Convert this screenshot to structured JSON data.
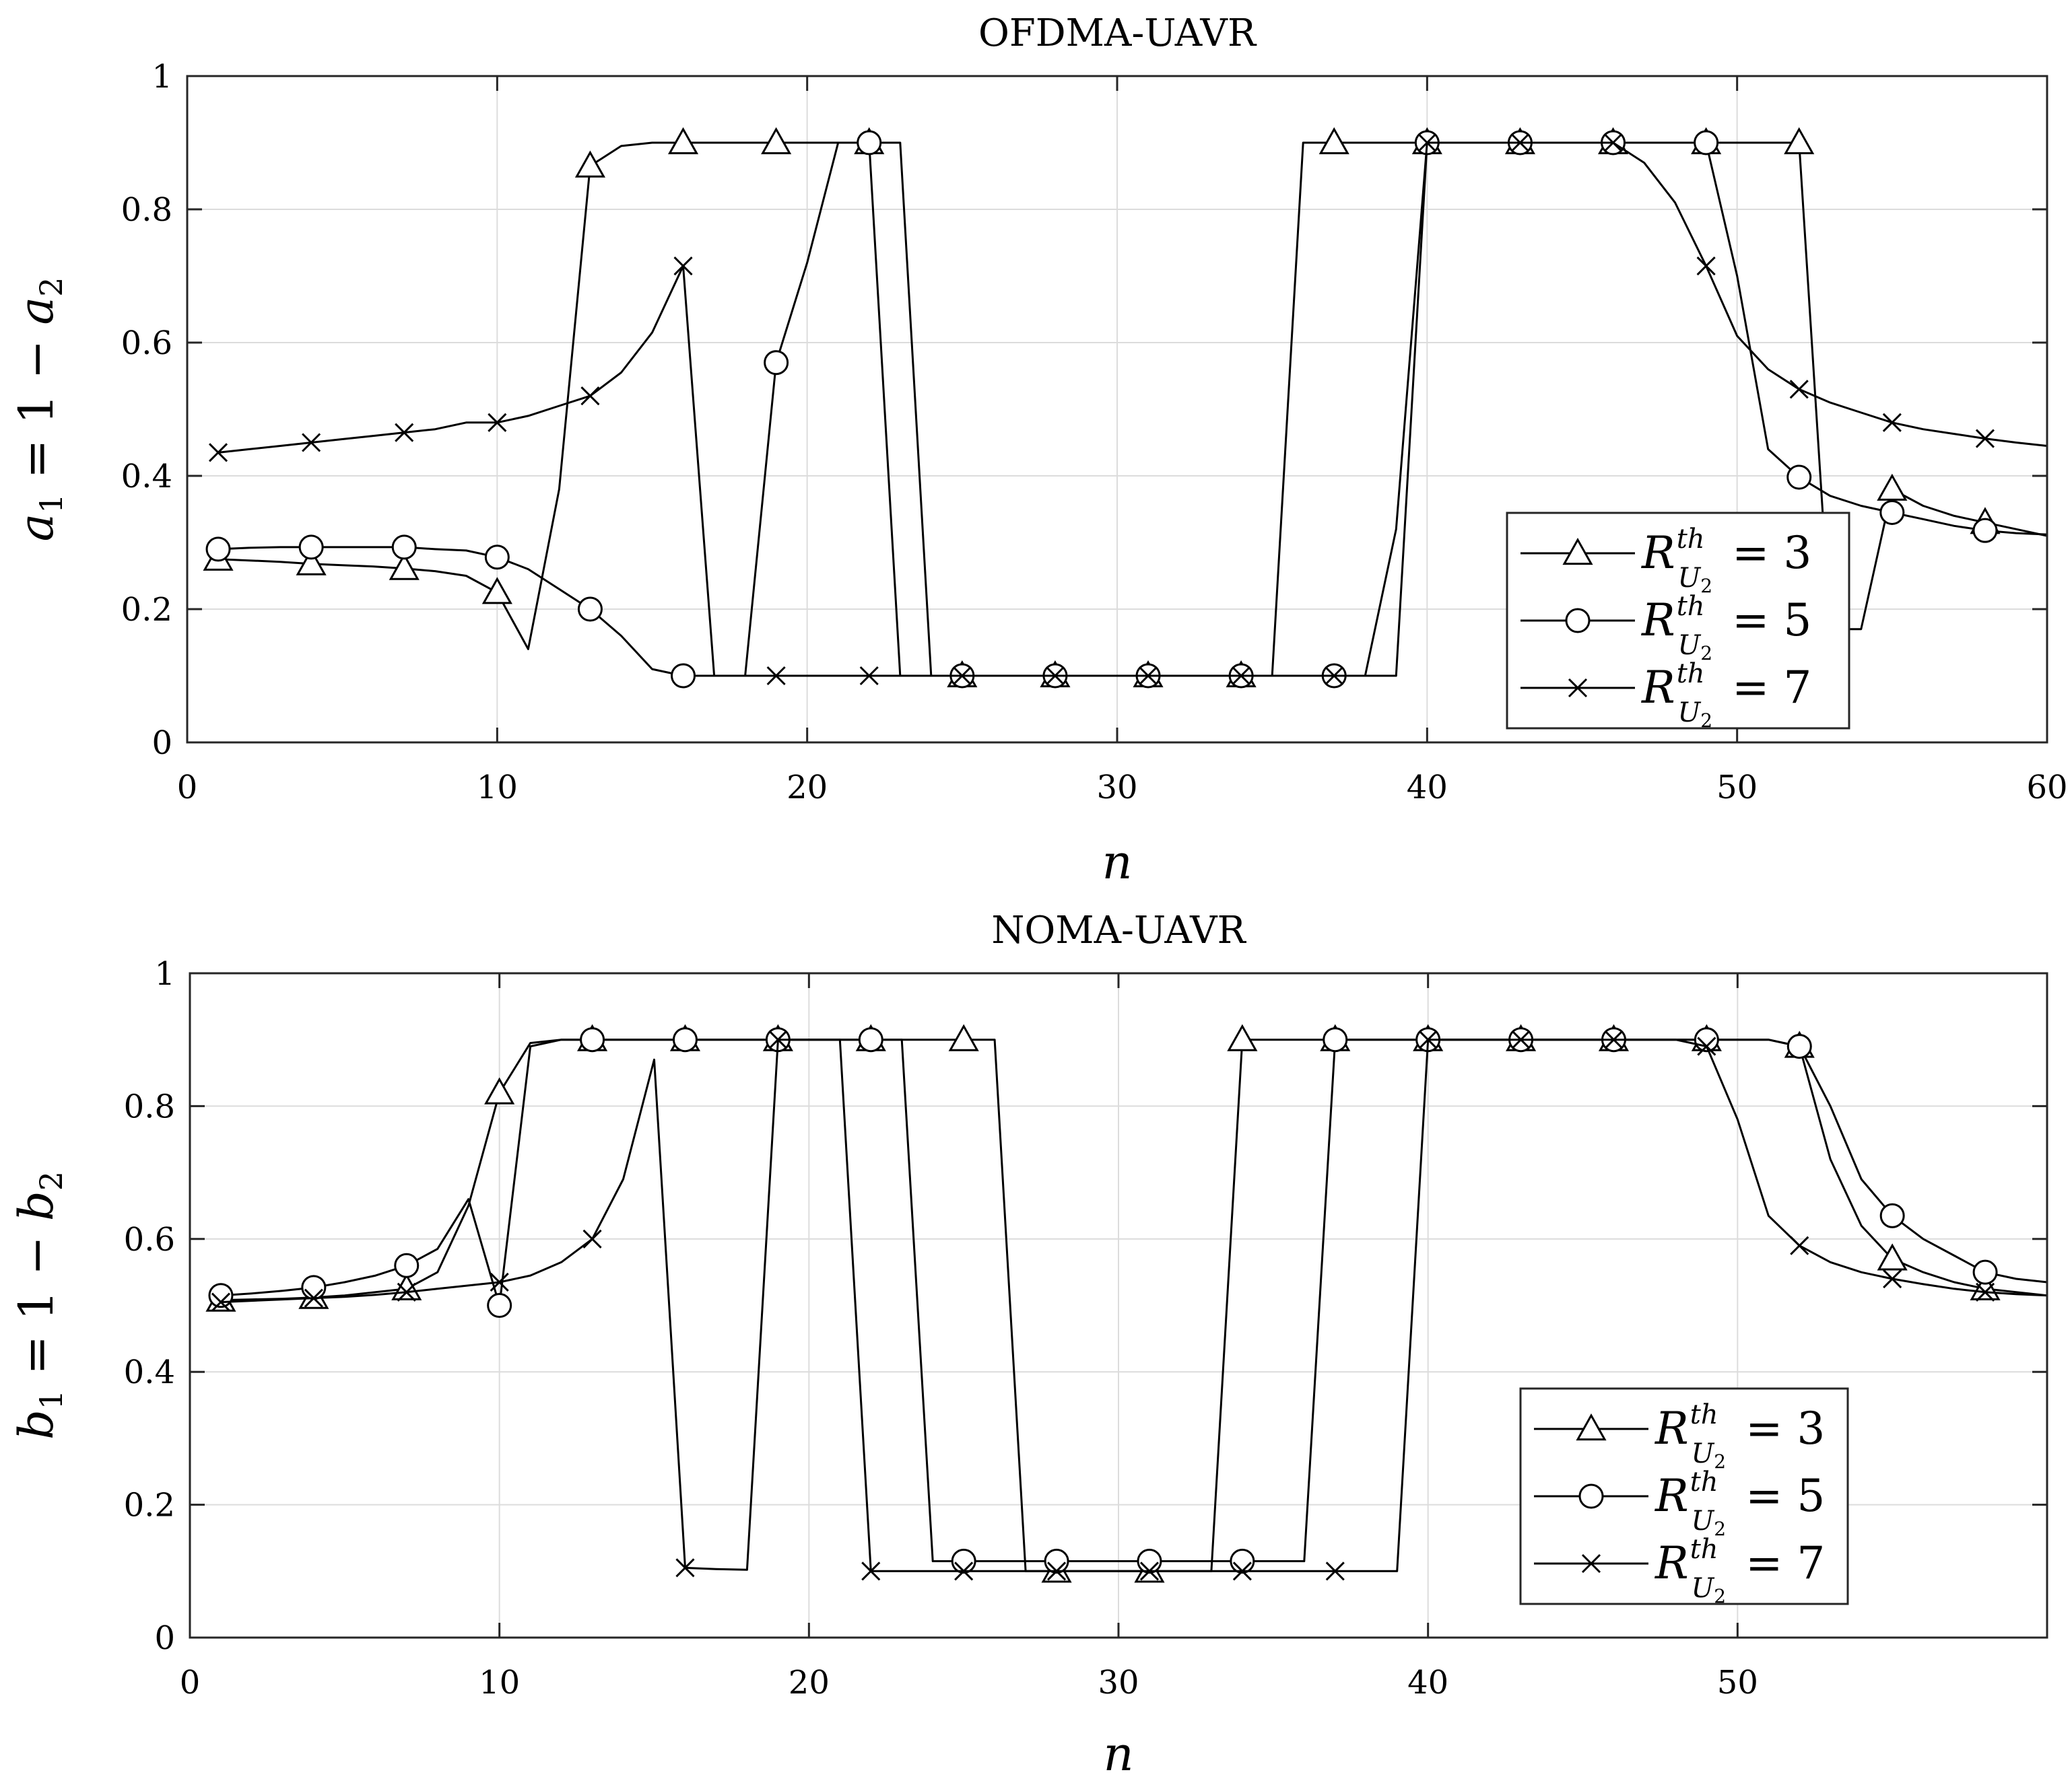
{
  "chart_data": [
    {
      "type": "line",
      "title": "OFDMA-UAVR",
      "xlabel": "n",
      "ylabel": "a1 = 1 − a2",
      "ylabel_parts": {
        "a": "a",
        "sub1": "1",
        "eq": " = 1 − ",
        "sub2": "2"
      },
      "xlim": [
        0,
        60
      ],
      "ylim": [
        0,
        1
      ],
      "xticks": [
        0,
        10,
        20,
        30,
        40,
        50,
        60
      ],
      "yticks": [
        0,
        0.2,
        0.4,
        0.6,
        0.8,
        1
      ],
      "xtick_labels": [
        "0",
        "10",
        "20",
        "30",
        "40",
        "50",
        "60"
      ],
      "ytick_labels": [
        "0",
        "0.2",
        "0.4",
        "0.6",
        "0.8",
        "1"
      ],
      "grid": true,
      "legend_position": "bottom-right",
      "series": [
        {
          "name": "R_U2^th = 3",
          "marker": "triangle",
          "x": [
            1,
            2,
            3,
            4,
            5,
            6,
            7,
            8,
            9,
            10,
            11,
            12,
            13,
            14,
            15,
            16,
            17,
            18,
            19,
            20,
            21,
            22,
            23,
            24,
            25,
            26,
            27,
            28,
            29,
            30,
            31,
            32,
            33,
            34,
            35,
            36,
            37,
            38,
            39,
            40,
            41,
            42,
            43,
            44,
            45,
            46,
            47,
            48,
            49,
            50,
            51,
            52,
            53,
            54,
            55,
            56,
            57,
            58,
            59,
            60
          ],
          "y": [
            0.275,
            0.273,
            0.271,
            0.268,
            0.266,
            0.264,
            0.261,
            0.257,
            0.25,
            0.225,
            0.14,
            0.38,
            0.865,
            0.895,
            0.9,
            0.9,
            0.9,
            0.9,
            0.9,
            0.9,
            0.9,
            0.9,
            0.9,
            0.1,
            0.1,
            0.1,
            0.1,
            0.1,
            0.1,
            0.1,
            0.1,
            0.1,
            0.1,
            0.1,
            0.1,
            0.9,
            0.9,
            0.9,
            0.9,
            0.9,
            0.9,
            0.9,
            0.9,
            0.9,
            0.9,
            0.9,
            0.9,
            0.9,
            0.9,
            0.9,
            0.9,
            0.9,
            0.17,
            0.17,
            0.38,
            0.355,
            0.34,
            0.33,
            0.32,
            0.31
          ]
        },
        {
          "name": "R_U2^th = 5",
          "marker": "circle",
          "x": [
            1,
            2,
            3,
            4,
            5,
            6,
            7,
            8,
            9,
            10,
            11,
            12,
            13,
            14,
            15,
            16,
            17,
            18,
            19,
            20,
            21,
            22,
            23,
            24,
            25,
            26,
            27,
            28,
            29,
            30,
            31,
            32,
            33,
            34,
            35,
            36,
            37,
            38,
            39,
            40,
            41,
            42,
            43,
            44,
            45,
            46,
            47,
            48,
            49,
            50,
            51,
            52,
            53,
            54,
            55,
            56,
            57,
            58,
            59,
            60
          ],
          "y": [
            0.29,
            0.292,
            0.293,
            0.293,
            0.293,
            0.293,
            0.293,
            0.29,
            0.288,
            0.278,
            0.26,
            0.23,
            0.2,
            0.16,
            0.11,
            0.1,
            0.1,
            0.1,
            0.57,
            0.72,
            0.9,
            0.9,
            0.1,
            0.1,
            0.1,
            0.1,
            0.1,
            0.1,
            0.1,
            0.1,
            0.1,
            0.1,
            0.1,
            0.1,
            0.1,
            0.1,
            0.1,
            0.1,
            0.1,
            0.9,
            0.9,
            0.9,
            0.9,
            0.9,
            0.9,
            0.9,
            0.9,
            0.9,
            0.9,
            0.7,
            0.44,
            0.398,
            0.37,
            0.355,
            0.345,
            0.335,
            0.325,
            0.318,
            0.314,
            0.312
          ]
        },
        {
          "name": "R_U2^th = 7",
          "marker": "x",
          "x": [
            1,
            2,
            3,
            4,
            5,
            6,
            7,
            8,
            9,
            10,
            11,
            12,
            13,
            14,
            15,
            16,
            17,
            18,
            19,
            20,
            21,
            22,
            23,
            24,
            25,
            26,
            27,
            28,
            29,
            30,
            31,
            32,
            33,
            34,
            35,
            36,
            37,
            38,
            39,
            40,
            41,
            42,
            43,
            44,
            45,
            46,
            47,
            48,
            49,
            50,
            51,
            52,
            53,
            54,
            55,
            56,
            57,
            58,
            59,
            60
          ],
          "y": [
            0.435,
            0.44,
            0.445,
            0.45,
            0.455,
            0.46,
            0.465,
            0.47,
            0.48,
            0.48,
            0.49,
            0.505,
            0.52,
            0.555,
            0.615,
            0.715,
            0.1,
            0.1,
            0.1,
            0.1,
            0.1,
            0.1,
            0.1,
            0.1,
            0.1,
            0.1,
            0.1,
            0.1,
            0.1,
            0.1,
            0.1,
            0.1,
            0.1,
            0.1,
            0.1,
            0.1,
            0.1,
            0.1,
            0.32,
            0.9,
            0.9,
            0.9,
            0.9,
            0.9,
            0.9,
            0.9,
            0.87,
            0.81,
            0.715,
            0.61,
            0.56,
            0.53,
            0.51,
            0.495,
            0.48,
            0.47,
            0.463,
            0.456,
            0.45,
            0.445
          ]
        }
      ]
    },
    {
      "type": "line",
      "title": "NOMA-UAVR",
      "xlabel": "n",
      "ylabel": "b1 = 1 − b2",
      "ylabel_parts": {
        "a": "b",
        "sub1": "1",
        "eq": " = 1 − ",
        "sub2": "2"
      },
      "xlim": [
        0,
        60
      ],
      "ylim": [
        0,
        1
      ],
      "xticks": [
        0,
        10,
        20,
        30,
        40,
        50
      ],
      "yticks": [
        0,
        0.2,
        0.4,
        0.6,
        0.8,
        1
      ],
      "xtick_labels": [
        "0",
        "10",
        "20",
        "30",
        "40",
        "50"
      ],
      "ytick_labels": [
        "0",
        "0.2",
        "0.4",
        "0.6",
        "0.8",
        "1"
      ],
      "grid": true,
      "legend_position": "bottom-right",
      "series": [
        {
          "name": "R_U2^th = 3",
          "marker": "triangle",
          "x": [
            1,
            2,
            3,
            4,
            5,
            6,
            7,
            8,
            9,
            10,
            11,
            12,
            13,
            14,
            15,
            16,
            17,
            18,
            19,
            20,
            21,
            22,
            23,
            24,
            25,
            26,
            27,
            28,
            29,
            30,
            31,
            32,
            33,
            34,
            35,
            36,
            37,
            38,
            39,
            40,
            41,
            42,
            43,
            44,
            45,
            46,
            47,
            48,
            49,
            50,
            51,
            52,
            53,
            54,
            55,
            56,
            57,
            58,
            59,
            60
          ],
          "y": [
            0.508,
            0.509,
            0.51,
            0.512,
            0.515,
            0.52,
            0.525,
            0.55,
            0.65,
            0.82,
            0.895,
            0.9,
            0.9,
            0.9,
            0.9,
            0.9,
            0.9,
            0.9,
            0.9,
            0.9,
            0.9,
            0.9,
            0.9,
            0.9,
            0.9,
            0.9,
            0.1,
            0.1,
            0.1,
            0.1,
            0.1,
            0.1,
            0.1,
            0.9,
            0.9,
            0.9,
            0.9,
            0.9,
            0.9,
            0.9,
            0.9,
            0.9,
            0.9,
            0.9,
            0.9,
            0.9,
            0.9,
            0.9,
            0.9,
            0.9,
            0.9,
            0.89,
            0.72,
            0.62,
            0.57,
            0.55,
            0.535,
            0.525,
            0.52,
            0.515
          ]
        },
        {
          "name": "R_U2^th = 5",
          "marker": "circle",
          "x": [
            1,
            2,
            3,
            4,
            5,
            6,
            7,
            8,
            9,
            10,
            11,
            12,
            13,
            14,
            15,
            16,
            17,
            18,
            19,
            20,
            21,
            22,
            23,
            24,
            25,
            26,
            27,
            28,
            29,
            30,
            31,
            32,
            33,
            34,
            35,
            36,
            37,
            38,
            39,
            40,
            41,
            42,
            43,
            44,
            45,
            46,
            47,
            48,
            49,
            50,
            51,
            52,
            53,
            54,
            55,
            56,
            57,
            58,
            59,
            60
          ],
          "y": [
            0.515,
            0.518,
            0.522,
            0.527,
            0.535,
            0.545,
            0.56,
            0.585,
            0.66,
            0.5,
            0.89,
            0.9,
            0.9,
            0.9,
            0.9,
            0.9,
            0.9,
            0.9,
            0.9,
            0.9,
            0.9,
            0.9,
            0.9,
            0.115,
            0.115,
            0.115,
            0.115,
            0.115,
            0.115,
            0.115,
            0.115,
            0.115,
            0.115,
            0.115,
            0.115,
            0.115,
            0.9,
            0.9,
            0.9,
            0.9,
            0.9,
            0.9,
            0.9,
            0.9,
            0.9,
            0.9,
            0.9,
            0.9,
            0.9,
            0.9,
            0.9,
            0.89,
            0.8,
            0.69,
            0.635,
            0.6,
            0.575,
            0.55,
            0.54,
            0.535
          ]
        },
        {
          "name": "R_U2^th = 7",
          "marker": "x",
          "x": [
            1,
            2,
            3,
            4,
            5,
            6,
            7,
            8,
            9,
            10,
            11,
            12,
            13,
            14,
            15,
            16,
            17,
            18,
            19,
            20,
            21,
            22,
            23,
            24,
            25,
            26,
            27,
            28,
            29,
            30,
            31,
            32,
            33,
            34,
            35,
            36,
            37,
            38,
            39,
            40,
            41,
            42,
            43,
            44,
            45,
            46,
            47,
            48,
            49,
            50,
            51,
            52,
            53,
            54,
            55,
            56,
            57,
            58,
            59,
            60
          ],
          "y": [
            0.505,
            0.507,
            0.509,
            0.511,
            0.513,
            0.516,
            0.52,
            0.525,
            0.53,
            0.535,
            0.545,
            0.565,
            0.6,
            0.69,
            0.87,
            0.105,
            0.103,
            0.102,
            0.9,
            0.9,
            0.9,
            0.1,
            0.1,
            0.1,
            0.1,
            0.1,
            0.1,
            0.1,
            0.1,
            0.1,
            0.1,
            0.1,
            0.1,
            0.1,
            0.1,
            0.1,
            0.1,
            0.1,
            0.1,
            0.9,
            0.9,
            0.9,
            0.9,
            0.9,
            0.9,
            0.9,
            0.9,
            0.9,
            0.89,
            0.78,
            0.635,
            0.59,
            0.565,
            0.55,
            0.54,
            0.532,
            0.525,
            0.52,
            0.517,
            0.515
          ]
        }
      ]
    }
  ],
  "legend": {
    "symbol": "R",
    "sup": "th",
    "sub_letter": "U",
    "sub_num": "2",
    "values": [
      "3",
      "5",
      "7"
    ]
  },
  "colors": {
    "line": "#000000",
    "grid": "#dcdcdc",
    "background": "#ffffff"
  }
}
